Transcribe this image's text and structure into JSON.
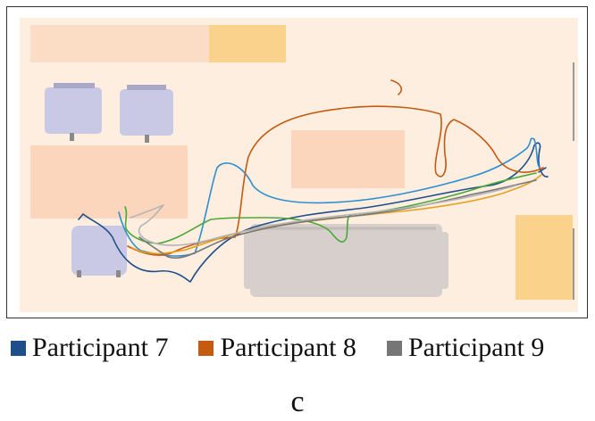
{
  "legend": {
    "items": [
      {
        "label": "Participant 7",
        "color": "#1f4e8c"
      },
      {
        "label": "Participant 8",
        "color": "#c55a11"
      },
      {
        "label": "Participant 9",
        "color": "#767676"
      }
    ]
  },
  "panel_label": "c",
  "colors": {
    "floor": "#fdeee0",
    "counter": "#fbdcc4",
    "table": "#fbd6bd",
    "cabinet": "#fbd28c",
    "chair": "#c9c9e6",
    "bed": "#d6cfcb",
    "wall_line": "#9a9a9a"
  },
  "trajectory_colors": [
    "#1f4e8c",
    "#2e8fcf",
    "#c55a11",
    "#e8a020",
    "#4aa83a",
    "#767676",
    "#b5b5b5"
  ]
}
